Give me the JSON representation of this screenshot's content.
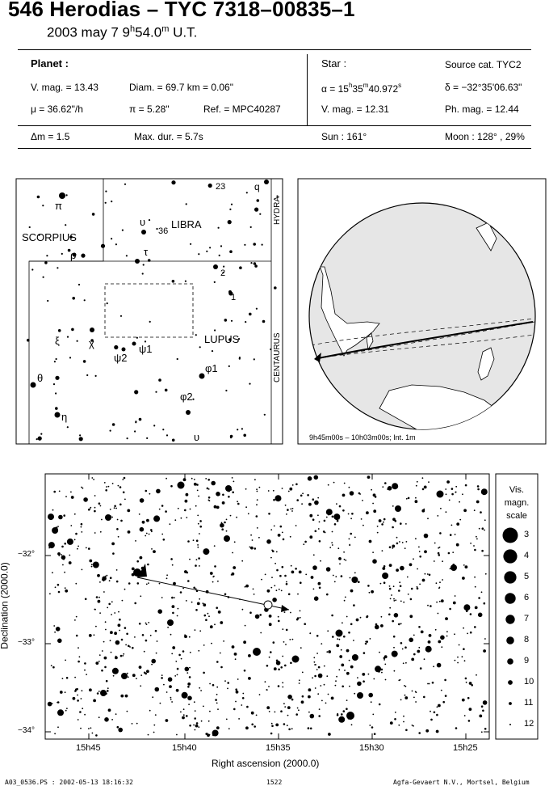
{
  "header": {
    "title": "546 Herodias  –  TYC 7318–00835–1",
    "subtitle_date": "2003 may  7  9",
    "subtitle_hour_sup": "h",
    "subtitle_min": "54.0",
    "subtitle_min_sup": "m",
    "subtitle_ut": " U.T."
  },
  "planet": {
    "heading": "Planet :",
    "vmag": "V. mag. = 13.43",
    "diam": "Diam. = 69.7 km = 0.06\"",
    "mu": "μ = 36.62\"/h",
    "pi": "π =  5.28\"",
    "ref": "Ref. = MPC40287"
  },
  "star": {
    "heading": "Star :",
    "source": "Source cat.  TYC2",
    "alpha_a": "α = 15",
    "alpha_h": "h",
    "alpha_b": "35",
    "alpha_m": "m",
    "alpha_c": "40.972",
    "alpha_s": "s",
    "delta": "δ = −32°35'06.63\"",
    "vmag": "V. mag. = 12.31",
    "phmag": "Ph. mag. = 12.44"
  },
  "summary": {
    "dm": "Δm = 1.5",
    "maxdur": "Max. dur. = 5.7s",
    "sun": "Sun : 161°",
    "moon": "Moon : 128° , 29%"
  },
  "finder": {
    "constellations": [
      "SCORPIUS",
      "LIBRA",
      "LUPUS",
      "HYDRA",
      "CENTAURUS"
    ],
    "greek": [
      "π",
      "ρ",
      "υ",
      "τ",
      "ξ",
      "χ",
      "ψ2",
      "ψ1",
      "θ",
      "η",
      "φ1",
      "φ2",
      "υ"
    ],
    "numbers": [
      "23",
      "36",
      "2",
      "1"
    ],
    "q_label": "q"
  },
  "globe": {
    "caption": "9h45m00s – 10h03m00s; Int.  1m"
  },
  "starchart": {
    "ra_ticks": [
      "15h45",
      "15h40",
      "15h35",
      "15h30",
      "15h25"
    ],
    "dec_ticks": [
      "−32°",
      "−33°",
      "−34°"
    ],
    "xlabel": "Right ascension (2000.0)",
    "ylabel": "Declination (2000.0)"
  },
  "legend": {
    "title_lines": [
      "Vis.",
      "magn.",
      "scale"
    ],
    "mags": [
      "3",
      "4",
      "5",
      "6",
      "7",
      "8",
      "9",
      "10",
      "11",
      "12"
    ]
  },
  "footer": {
    "left": "A03_0536.PS : 2002-05-13 18:16:32",
    "center": "1522",
    "right": "Agfa-Gevaert N.V., Mortsel, Belgium"
  }
}
